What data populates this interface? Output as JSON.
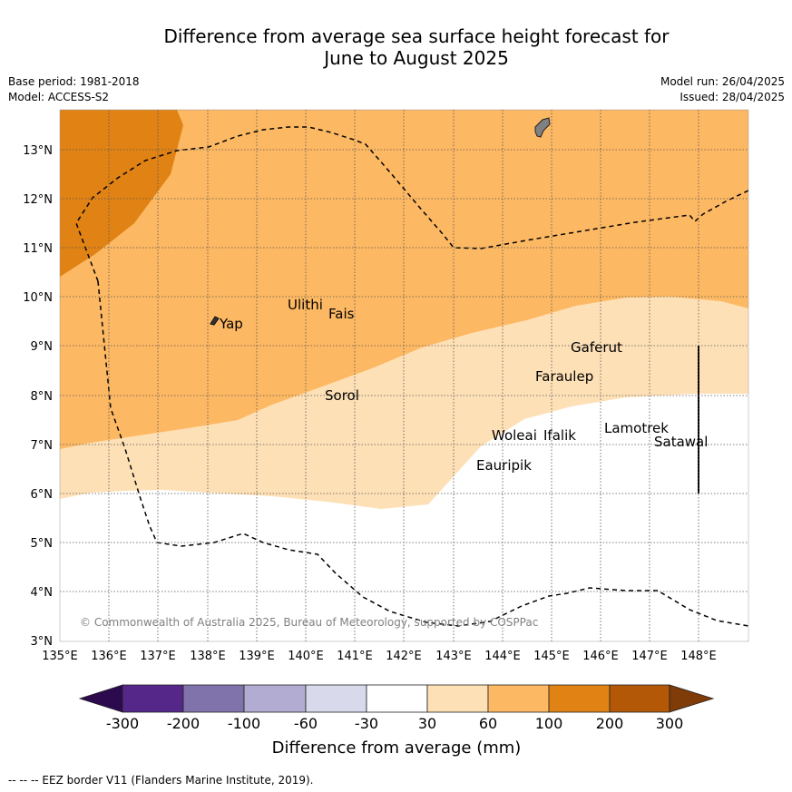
{
  "title": "Difference from average sea surface height forecast for",
  "subtitle": "June to August 2025",
  "info": {
    "base_period": "Base period: 1981-2018",
    "model": "Model: ACCESS-S2",
    "model_run": "Model run: 26/04/2025",
    "issued": "Issued: 28/04/2025"
  },
  "map": {
    "lon_ticks": [
      "135°E",
      "136°E",
      "137°E",
      "138°E",
      "139°E",
      "140°E",
      "141°E",
      "142°E",
      "143°E",
      "144°E",
      "145°E",
      "146°E",
      "147°E",
      "148°E"
    ],
    "lat_ticks": [
      "3°N",
      "4°N",
      "5°N",
      "6°N",
      "7°N",
      "8°N",
      "9°N",
      "10°N",
      "11°N",
      "12°N",
      "13°N"
    ],
    "places": [
      "Yap",
      "Ulithi",
      "Fais",
      "Sorol",
      "Gaferut",
      "Faraulep",
      "Woleai",
      "Ifalik",
      "Lamotrek",
      "Satawal",
      "Eauripik"
    ],
    "copyright": "© Commonwealth of Australia 2025, Bureau of Meteorology, supported by COSPPac"
  },
  "legend": {
    "labels": [
      "-300",
      "-200",
      "-100",
      "-60",
      "-30",
      "30",
      "60",
      "100",
      "200",
      "300"
    ],
    "colors": [
      "#2d0a4e",
      "#542788",
      "#8073ac",
      "#b2abd2",
      "#d8daeb",
      "#ffffff",
      "#fee0b6",
      "#fdb863",
      "#e08214",
      "#b35806",
      "#7f3b08"
    ],
    "title": "Difference from average (mm)"
  },
  "footer": "--  --  -- EEZ border V11 (Flanders Marine Institute, 2019)."
}
